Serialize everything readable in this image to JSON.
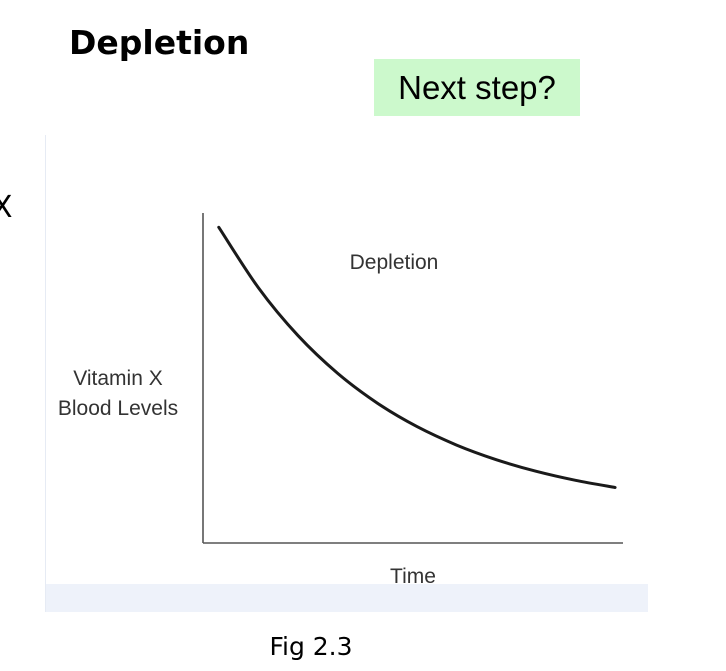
{
  "slide": {
    "title": "Depletion",
    "next_button": "Next step?",
    "edge_text": "X",
    "caption": "Fig 2.3"
  },
  "chart_data": {
    "type": "line",
    "title": "Depletion",
    "xlabel": "Time",
    "ylabel_lines": [
      "Vitamin X",
      "Blood Levels"
    ],
    "series": [
      {
        "values": [
          [
            0.0,
            1.0
          ],
          [
            0.1,
            0.7889
          ],
          [
            0.2,
            0.6224
          ],
          [
            0.3,
            0.4911
          ],
          [
            0.4,
            0.3875
          ],
          [
            0.5,
            0.3058
          ],
          [
            0.6,
            0.2413
          ],
          [
            0.7,
            0.1904
          ],
          [
            0.8,
            0.1502
          ],
          [
            0.9,
            0.1185
          ],
          [
            1.0,
            0.0935
          ]
        ]
      }
    ],
    "xlim": [
      -0.04,
      1.02
    ],
    "ylim": [
      -0.1,
      1.05
    ],
    "ticks": "none",
    "grid": false,
    "line_color": "#1a1a1a",
    "axis_color": "#555555"
  }
}
